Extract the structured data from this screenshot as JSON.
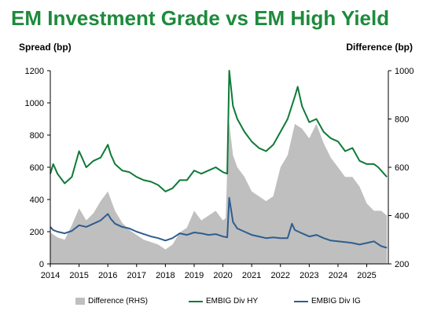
{
  "title": "EM Investment Grade vs EM High Yield",
  "left_axis_title": "Spread (bp)",
  "right_axis_title": "Difference (bp)",
  "colors": {
    "title": "#1e8a3c",
    "hy": "#0f7a38",
    "ig": "#2f5d8f",
    "diff": "#bfbfbf"
  },
  "chart_data": {
    "type": "line",
    "x_ticks": [
      "2014",
      "2015",
      "2016",
      "2017",
      "2018",
      "2019",
      "2020",
      "2021",
      "2022",
      "2023",
      "2024",
      "2025"
    ],
    "x_range": [
      2014.0,
      2025.75
    ],
    "y_left": {
      "label": "Spread (bp)",
      "range": [
        0,
        1200
      ],
      "ticks": [
        "0",
        "200",
        "400",
        "600",
        "800",
        "1000",
        "1200"
      ]
    },
    "y_right": {
      "label": "Difference (bp)",
      "range": [
        200,
        1000
      ],
      "ticks": [
        "200",
        "400",
        "600",
        "800",
        "1000"
      ]
    },
    "grid": false,
    "legend_position": "bottom",
    "series": [
      {
        "name": "Difference (RHS)",
        "axis": "right",
        "style": "area",
        "points": [
          [
            2014.0,
            330
          ],
          [
            2014.25,
            310
          ],
          [
            2014.5,
            300
          ],
          [
            2014.75,
            360
          ],
          [
            2015.0,
            430
          ],
          [
            2015.25,
            380
          ],
          [
            2015.5,
            410
          ],
          [
            2015.75,
            460
          ],
          [
            2016.0,
            500
          ],
          [
            2016.25,
            420
          ],
          [
            2016.5,
            370
          ],
          [
            2016.75,
            340
          ],
          [
            2017.0,
            320
          ],
          [
            2017.25,
            300
          ],
          [
            2017.5,
            290
          ],
          [
            2017.75,
            280
          ],
          [
            2018.0,
            260
          ],
          [
            2018.25,
            280
          ],
          [
            2018.5,
            330
          ],
          [
            2018.75,
            350
          ],
          [
            2019.0,
            420
          ],
          [
            2019.25,
            380
          ],
          [
            2019.5,
            400
          ],
          [
            2019.75,
            420
          ],
          [
            2020.0,
            380
          ],
          [
            2020.1,
            390
          ],
          [
            2020.2,
            800
          ],
          [
            2020.35,
            650
          ],
          [
            2020.5,
            600
          ],
          [
            2020.75,
            560
          ],
          [
            2021.0,
            500
          ],
          [
            2021.25,
            480
          ],
          [
            2021.5,
            460
          ],
          [
            2021.75,
            480
          ],
          [
            2022.0,
            600
          ],
          [
            2022.25,
            650
          ],
          [
            2022.5,
            780
          ],
          [
            2022.75,
            760
          ],
          [
            2023.0,
            720
          ],
          [
            2023.25,
            780
          ],
          [
            2023.5,
            700
          ],
          [
            2023.75,
            640
          ],
          [
            2024.0,
            600
          ],
          [
            2024.25,
            560
          ],
          [
            2024.5,
            560
          ],
          [
            2024.75,
            520
          ],
          [
            2025.0,
            450
          ],
          [
            2025.25,
            420
          ],
          [
            2025.5,
            420
          ],
          [
            2025.7,
            400
          ]
        ]
      },
      {
        "name": "EMBIG Div HY",
        "axis": "left",
        "style": "line",
        "points": [
          [
            2014.0,
            560
          ],
          [
            2014.1,
            620
          ],
          [
            2014.25,
            560
          ],
          [
            2014.5,
            500
          ],
          [
            2014.75,
            540
          ],
          [
            2015.0,
            700
          ],
          [
            2015.1,
            660
          ],
          [
            2015.25,
            600
          ],
          [
            2015.5,
            640
          ],
          [
            2015.75,
            660
          ],
          [
            2016.0,
            740
          ],
          [
            2016.1,
            680
          ],
          [
            2016.25,
            620
          ],
          [
            2016.5,
            580
          ],
          [
            2016.75,
            570
          ],
          [
            2017.0,
            540
          ],
          [
            2017.25,
            520
          ],
          [
            2017.5,
            510
          ],
          [
            2017.75,
            490
          ],
          [
            2018.0,
            450
          ],
          [
            2018.25,
            470
          ],
          [
            2018.5,
            520
          ],
          [
            2018.75,
            520
          ],
          [
            2019.0,
            580
          ],
          [
            2019.25,
            560
          ],
          [
            2019.5,
            580
          ],
          [
            2019.75,
            600
          ],
          [
            2020.0,
            570
          ],
          [
            2020.15,
            560
          ],
          [
            2020.22,
            1200
          ],
          [
            2020.35,
            980
          ],
          [
            2020.5,
            900
          ],
          [
            2020.75,
            820
          ],
          [
            2021.0,
            760
          ],
          [
            2021.25,
            720
          ],
          [
            2021.5,
            700
          ],
          [
            2021.75,
            740
          ],
          [
            2022.0,
            820
          ],
          [
            2022.25,
            900
          ],
          [
            2022.5,
            1040
          ],
          [
            2022.6,
            1100
          ],
          [
            2022.75,
            980
          ],
          [
            2023.0,
            880
          ],
          [
            2023.25,
            900
          ],
          [
            2023.5,
            820
          ],
          [
            2023.75,
            780
          ],
          [
            2024.0,
            760
          ],
          [
            2024.25,
            700
          ],
          [
            2024.5,
            720
          ],
          [
            2024.75,
            640
          ],
          [
            2025.0,
            620
          ],
          [
            2025.25,
            620
          ],
          [
            2025.4,
            600
          ],
          [
            2025.6,
            560
          ],
          [
            2025.7,
            540
          ]
        ]
      },
      {
        "name": "EMBIG Div IG",
        "axis": "left",
        "style": "line",
        "points": [
          [
            2014.0,
            230
          ],
          [
            2014.1,
            210
          ],
          [
            2014.25,
            200
          ],
          [
            2014.5,
            190
          ],
          [
            2014.75,
            205
          ],
          [
            2015.0,
            240
          ],
          [
            2015.25,
            230
          ],
          [
            2015.5,
            250
          ],
          [
            2015.75,
            270
          ],
          [
            2016.0,
            310
          ],
          [
            2016.1,
            280
          ],
          [
            2016.25,
            250
          ],
          [
            2016.5,
            230
          ],
          [
            2016.75,
            220
          ],
          [
            2017.0,
            200
          ],
          [
            2017.25,
            185
          ],
          [
            2017.5,
            170
          ],
          [
            2017.75,
            160
          ],
          [
            2018.0,
            145
          ],
          [
            2018.25,
            160
          ],
          [
            2018.5,
            190
          ],
          [
            2018.75,
            180
          ],
          [
            2019.0,
            195
          ],
          [
            2019.25,
            190
          ],
          [
            2019.5,
            180
          ],
          [
            2019.75,
            185
          ],
          [
            2020.0,
            170
          ],
          [
            2020.15,
            165
          ],
          [
            2020.22,
            410
          ],
          [
            2020.35,
            260
          ],
          [
            2020.5,
            220
          ],
          [
            2020.75,
            200
          ],
          [
            2021.0,
            180
          ],
          [
            2021.25,
            170
          ],
          [
            2021.5,
            160
          ],
          [
            2021.75,
            165
          ],
          [
            2022.0,
            160
          ],
          [
            2022.25,
            160
          ],
          [
            2022.4,
            250
          ],
          [
            2022.5,
            210
          ],
          [
            2022.75,
            190
          ],
          [
            2023.0,
            170
          ],
          [
            2023.25,
            180
          ],
          [
            2023.5,
            160
          ],
          [
            2023.75,
            145
          ],
          [
            2024.0,
            140
          ],
          [
            2024.25,
            135
          ],
          [
            2024.5,
            130
          ],
          [
            2024.75,
            120
          ],
          [
            2025.0,
            130
          ],
          [
            2025.25,
            140
          ],
          [
            2025.5,
            110
          ],
          [
            2025.7,
            100
          ]
        ]
      }
    ]
  },
  "legend": [
    {
      "label": "Difference (RHS)",
      "kind": "box",
      "color": "#bfbfbf"
    },
    {
      "label": "EMBIG Div HY",
      "kind": "line",
      "color": "#0f7a38"
    },
    {
      "label": "EMBIG Div IG",
      "kind": "line",
      "color": "#2f5d8f"
    }
  ]
}
